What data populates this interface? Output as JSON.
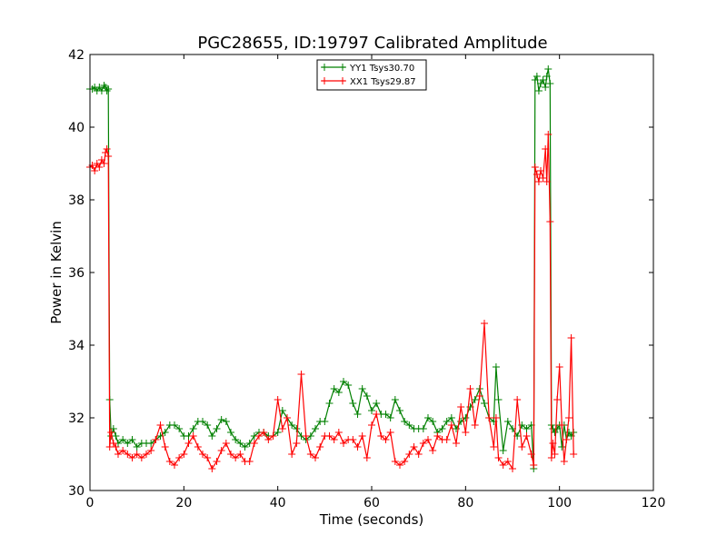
{
  "chart_data": {
    "type": "line",
    "title": "PGC28655, ID:19797 Calibrated Amplitude",
    "xlabel": "Time (seconds)",
    "ylabel": "Power in Kelvin",
    "xlim": [
      0,
      120
    ],
    "ylim": [
      30,
      42
    ],
    "xticks": [
      0,
      20,
      40,
      60,
      80,
      100,
      120
    ],
    "yticks": [
      30,
      32,
      34,
      36,
      38,
      40,
      42
    ],
    "grid": false,
    "legend_position": "top-center",
    "marker": "plus",
    "series": [
      {
        "name": "YY1 Tsys30.70",
        "color": "#008000",
        "x": [
          0.0,
          0.5,
          1.0,
          1.5,
          2.0,
          2.5,
          3.0,
          3.3,
          3.6,
          3.9,
          4.2,
          4.5,
          5.0,
          5.5,
          6.0,
          7.0,
          8.0,
          9.0,
          10.0,
          11.0,
          12.0,
          13.0,
          14.0,
          15.0,
          16.0,
          17.0,
          18.0,
          19.0,
          20.0,
          21.0,
          22.0,
          23.0,
          24.0,
          25.0,
          26.0,
          27.0,
          28.0,
          29.0,
          30.0,
          31.0,
          32.0,
          33.0,
          34.0,
          35.0,
          36.0,
          37.0,
          38.0,
          39.0,
          40.0,
          41.0,
          42.0,
          43.0,
          44.0,
          45.0,
          46.0,
          47.0,
          48.0,
          49.0,
          50.0,
          51.0,
          52.0,
          53.0,
          54.0,
          55.0,
          56.0,
          57.0,
          58.0,
          59.0,
          60.0,
          61.0,
          62.0,
          63.0,
          64.0,
          65.0,
          66.0,
          67.0,
          68.0,
          69.0,
          70.0,
          71.0,
          72.0,
          73.0,
          74.0,
          75.0,
          76.0,
          77.0,
          78.0,
          79.0,
          80.0,
          81.0,
          82.0,
          83.0,
          84.0,
          85.0,
          86.0,
          86.5,
          87.0,
          88.0,
          89.0,
          90.0,
          91.0,
          92.0,
          93.0,
          94.0,
          94.5,
          94.8,
          95.2,
          95.6,
          96.0,
          96.5,
          97.0,
          97.3,
          97.6,
          98.0,
          98.3,
          98.6,
          99.0,
          99.5,
          100.0,
          100.5,
          101.0,
          101.5,
          102.0,
          102.5,
          103.0
        ],
        "y": [
          41.05,
          41.05,
          41.1,
          41.0,
          41.1,
          41.0,
          41.15,
          41.1,
          41.0,
          41.05,
          32.5,
          31.5,
          31.7,
          31.5,
          31.3,
          31.4,
          31.3,
          31.4,
          31.2,
          31.3,
          31.3,
          31.3,
          31.4,
          31.5,
          31.6,
          31.8,
          31.8,
          31.7,
          31.5,
          31.5,
          31.7,
          31.9,
          31.9,
          31.8,
          31.5,
          31.7,
          31.95,
          31.9,
          31.6,
          31.4,
          31.3,
          31.2,
          31.3,
          31.5,
          31.6,
          31.6,
          31.5,
          31.5,
          31.6,
          32.2,
          32.0,
          31.8,
          31.7,
          31.5,
          31.4,
          31.5,
          31.7,
          31.9,
          31.9,
          32.4,
          32.8,
          32.7,
          33.0,
          32.9,
          32.4,
          32.1,
          32.8,
          32.6,
          32.2,
          32.4,
          32.1,
          32.1,
          32.0,
          32.5,
          32.2,
          31.9,
          31.8,
          31.7,
          31.7,
          31.7,
          32.0,
          31.9,
          31.6,
          31.7,
          31.9,
          32.0,
          31.7,
          31.9,
          32.0,
          32.3,
          32.5,
          32.8,
          32.4,
          32.0,
          31.9,
          33.4,
          32.5,
          31.1,
          31.9,
          31.7,
          31.5,
          31.8,
          31.7,
          31.8,
          30.6,
          41.3,
          41.4,
          41.0,
          41.2,
          41.3,
          41.1,
          41.4,
          41.6,
          41.2,
          31.8,
          31.7,
          31.6,
          31.7,
          31.8,
          31.2,
          31.8,
          31.4,
          31.6,
          31.5,
          31.6
        ]
      },
      {
        "name": "XX1 Tsys29.87",
        "color": "#ff0000",
        "x": [
          0.0,
          0.5,
          1.0,
          1.5,
          2.0,
          2.5,
          3.0,
          3.3,
          3.6,
          3.9,
          4.2,
          4.5,
          5.0,
          5.5,
          6.0,
          7.0,
          8.0,
          9.0,
          10.0,
          11.0,
          12.0,
          13.0,
          14.0,
          15.0,
          16.0,
          17.0,
          18.0,
          19.0,
          20.0,
          21.0,
          22.0,
          23.0,
          24.0,
          25.0,
          26.0,
          27.0,
          28.0,
          29.0,
          30.0,
          31.0,
          32.0,
          33.0,
          34.0,
          35.0,
          36.0,
          37.0,
          38.0,
          39.0,
          40.0,
          41.0,
          42.0,
          43.0,
          44.0,
          45.0,
          46.0,
          47.0,
          48.0,
          49.0,
          50.0,
          51.0,
          52.0,
          53.0,
          54.0,
          55.0,
          56.0,
          57.0,
          58.0,
          59.0,
          60.0,
          61.0,
          62.0,
          63.0,
          64.0,
          65.0,
          66.0,
          67.0,
          68.0,
          69.0,
          70.0,
          71.0,
          72.0,
          73.0,
          74.0,
          75.0,
          76.0,
          77.0,
          78.0,
          79.0,
          80.0,
          81.0,
          82.0,
          83.0,
          84.0,
          85.0,
          86.0,
          86.5,
          87.0,
          88.0,
          89.0,
          90.0,
          91.0,
          92.0,
          93.0,
          94.0,
          94.5,
          94.8,
          95.2,
          95.6,
          96.0,
          96.5,
          97.0,
          97.3,
          97.6,
          98.0,
          98.3,
          98.6,
          99.0,
          99.5,
          100.0,
          100.5,
          101.0,
          101.5,
          102.0,
          102.5,
          103.0
        ],
        "y": [
          38.9,
          38.95,
          38.8,
          39.0,
          38.9,
          39.1,
          39.0,
          39.3,
          39.4,
          39.2,
          31.2,
          31.6,
          31.3,
          31.2,
          31.0,
          31.1,
          31.0,
          30.9,
          31.0,
          30.9,
          31.0,
          31.1,
          31.4,
          31.8,
          31.2,
          30.8,
          30.7,
          30.9,
          31.0,
          31.3,
          31.5,
          31.2,
          31.0,
          30.9,
          30.6,
          30.8,
          31.1,
          31.3,
          31.0,
          30.9,
          31.0,
          30.8,
          30.8,
          31.3,
          31.5,
          31.6,
          31.4,
          31.5,
          32.5,
          31.7,
          32.0,
          31.0,
          31.3,
          33.2,
          31.5,
          31.0,
          30.9,
          31.2,
          31.5,
          31.5,
          31.4,
          31.6,
          31.3,
          31.4,
          31.4,
          31.2,
          31.5,
          30.9,
          31.8,
          32.1,
          31.5,
          31.4,
          31.6,
          30.8,
          30.7,
          30.8,
          31.0,
          31.2,
          31.0,
          31.3,
          31.4,
          31.1,
          31.5,
          31.4,
          31.4,
          31.8,
          31.3,
          32.3,
          31.6,
          32.8,
          31.8,
          32.6,
          34.6,
          32.0,
          31.2,
          32.0,
          30.9,
          30.7,
          30.8,
          30.6,
          32.5,
          31.2,
          31.5,
          31.0,
          30.7,
          38.9,
          38.7,
          38.5,
          38.8,
          38.6,
          39.4,
          38.5,
          39.8,
          37.4,
          30.9,
          31.3,
          31.0,
          32.5,
          33.4,
          31.8,
          30.8,
          31.4,
          32.0,
          34.2,
          31.0
        ]
      }
    ]
  }
}
